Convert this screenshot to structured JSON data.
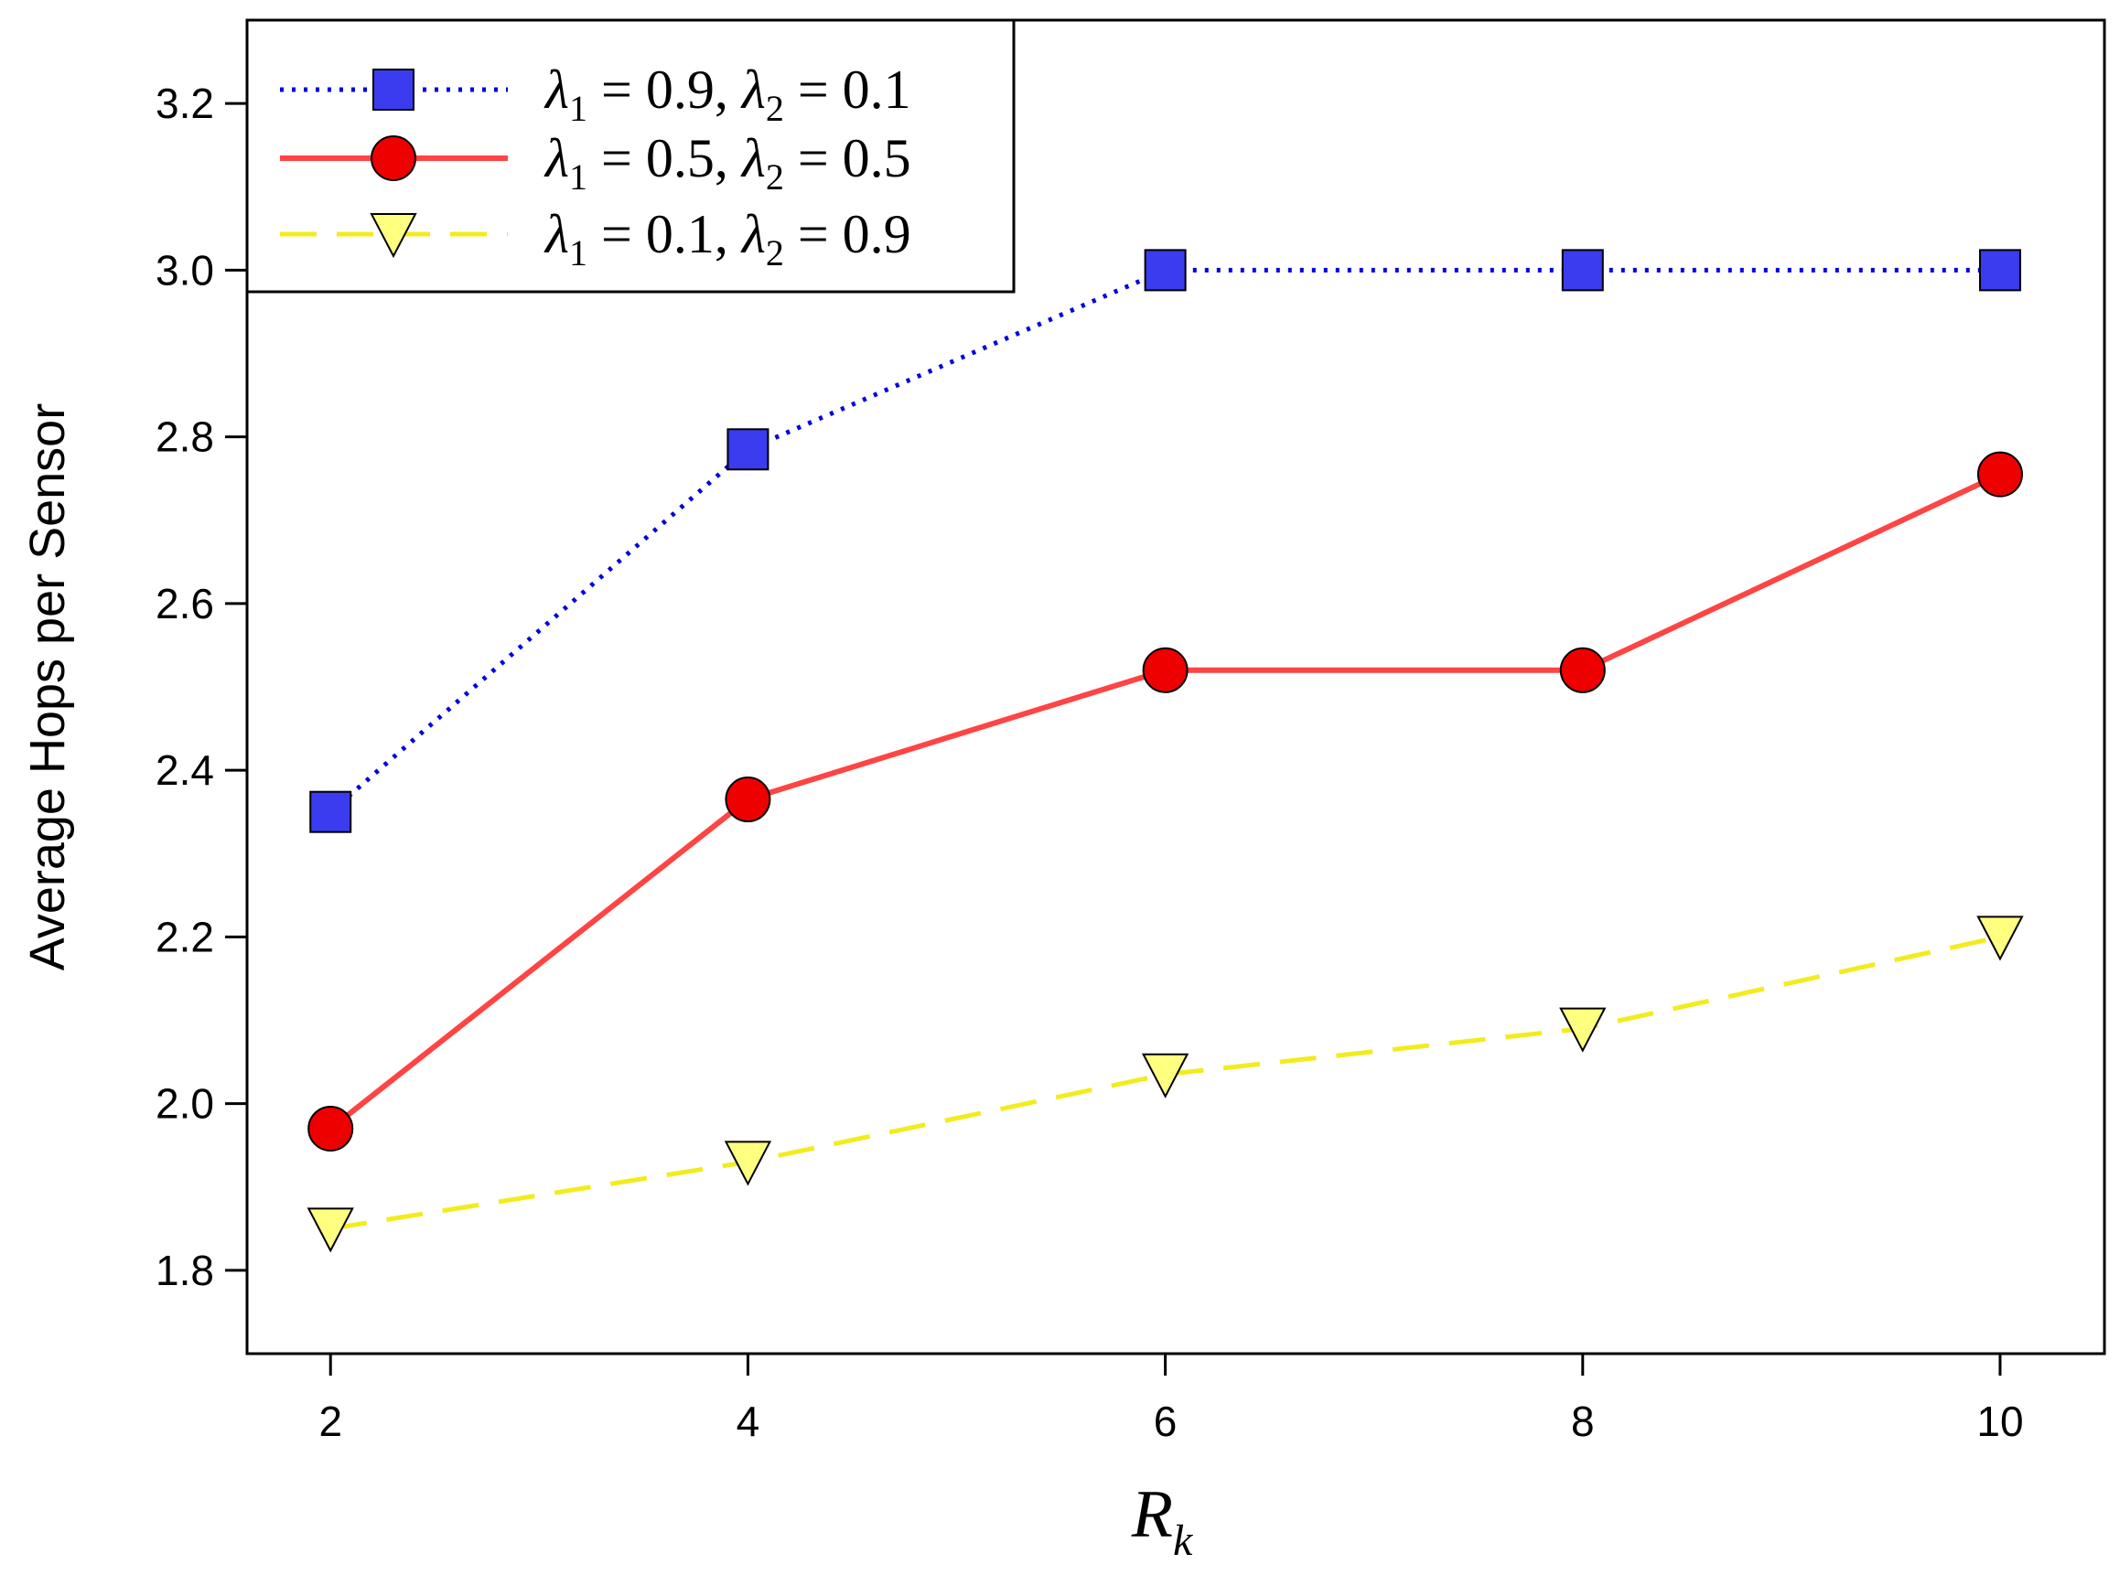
{
  "chart_data": {
    "type": "line",
    "xlabel_main": "R",
    "xlabel_sub": "k",
    "ylabel": "Average Hops per Sensor",
    "x": [
      2,
      4,
      6,
      8,
      10
    ],
    "xlim": [
      1.6,
      10.5
    ],
    "ylim": [
      1.7,
      3.3
    ],
    "xticks": [
      "2",
      "4",
      "6",
      "8",
      "10"
    ],
    "yticks": [
      "1.8",
      "2.0",
      "2.2",
      "2.4",
      "2.6",
      "2.8",
      "3.0",
      "3.2"
    ],
    "ytick_values": [
      1.8,
      2.0,
      2.2,
      2.4,
      2.6,
      2.8,
      3.0,
      3.2
    ],
    "grid": false,
    "legend_position": "top-left",
    "series": [
      {
        "values": [
          2.35,
          2.785,
          3.0,
          3.0,
          3.0
        ],
        "line_color": "#0000dd",
        "marker_color": "#3b3bf0",
        "marker": "square",
        "line_style": "dotted",
        "legend": {
          "l1": "λ",
          "s1": "1",
          "eq1": " = 0.9, ",
          "l2": "λ",
          "s2": "2",
          "eq2": " = 0.1"
        }
      },
      {
        "values": [
          1.97,
          2.365,
          2.52,
          2.52,
          2.755
        ],
        "line_color": "#ff4444",
        "marker_color": "#ee0000",
        "marker": "circle",
        "line_style": "solid",
        "legend": {
          "l1": "λ",
          "s1": "1",
          "eq1": " = 0.5, ",
          "l2": "λ",
          "s2": "2",
          "eq2": " = 0.5"
        }
      },
      {
        "values": [
          1.85,
          1.93,
          2.035,
          2.09,
          2.2
        ],
        "line_color": "#f2ec1e",
        "marker_color": "#ffff80",
        "marker": "triangle-down",
        "line_style": "dashed",
        "legend": {
          "l1": "λ",
          "s1": "1",
          "eq1": " = 0.1, ",
          "l2": "λ",
          "s2": "2",
          "eq2": " = 0.9"
        }
      }
    ]
  }
}
